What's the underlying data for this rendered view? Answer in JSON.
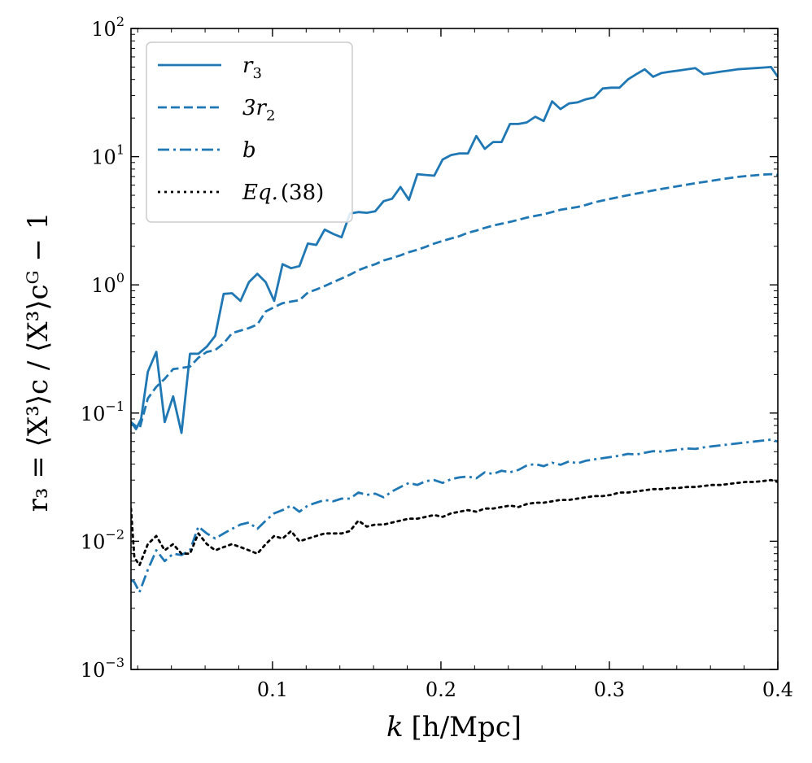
{
  "chart_data": {
    "type": "line",
    "title": "",
    "xlabel_var": "k",
    "xlabel_units": "[h/Mpc]",
    "ylabel": "r₃ = ⟨X³⟩c / ⟨X³⟩cᴳ − 1",
    "yscale": "log",
    "xlim": [
      0.016,
      0.4
    ],
    "ylim": [
      0.001,
      100
    ],
    "xticks": [
      0.1,
      0.2,
      0.3,
      0.4
    ],
    "xtick_labels": [
      "0.1",
      "0.2",
      "0.3",
      "0.4"
    ],
    "yticks": [
      0.001,
      0.01,
      0.1,
      1,
      10,
      100
    ],
    "ytick_bases": [
      "10",
      "10",
      "10",
      "10",
      "10",
      "10"
    ],
    "ytick_exps": [
      "−3",
      "−2",
      "−1",
      "0",
      "1",
      "2"
    ],
    "legend_position": "upper-left",
    "color": "#1f77b4",
    "series": [
      {
        "name": "r3",
        "label_main": "r",
        "label_sub": "3",
        "style": "solid",
        "color": "#1f77b4",
        "x": [
          0.016,
          0.019,
          0.022,
          0.026,
          0.031,
          0.036,
          0.041,
          0.046,
          0.051,
          0.056,
          0.061,
          0.066,
          0.071,
          0.076,
          0.081,
          0.086,
          0.091,
          0.096,
          0.101,
          0.106,
          0.111,
          0.116,
          0.121,
          0.126,
          0.131,
          0.136,
          0.141,
          0.146,
          0.151,
          0.156,
          0.161,
          0.166,
          0.171,
          0.176,
          0.181,
          0.186,
          0.191,
          0.196,
          0.201,
          0.206,
          0.211,
          0.216,
          0.221,
          0.226,
          0.231,
          0.236,
          0.241,
          0.246,
          0.251,
          0.256,
          0.261,
          0.266,
          0.271,
          0.276,
          0.281,
          0.286,
          0.291,
          0.296,
          0.301,
          0.306,
          0.311,
          0.316,
          0.321,
          0.326,
          0.331,
          0.336,
          0.341,
          0.346,
          0.351,
          0.356,
          0.361,
          0.366,
          0.371,
          0.376,
          0.381,
          0.386,
          0.391,
          0.396,
          0.4
        ],
        "y": [
          0.085,
          0.075,
          0.09,
          0.21,
          0.3,
          0.085,
          0.135,
          0.07,
          0.29,
          0.29,
          0.33,
          0.4,
          0.85,
          0.86,
          0.75,
          1.05,
          1.22,
          1.05,
          0.75,
          1.45,
          1.35,
          1.4,
          2.1,
          2.05,
          2.7,
          2.5,
          2.35,
          3.6,
          3.7,
          3.65,
          3.75,
          4.5,
          4.7,
          5.8,
          4.6,
          7.3,
          7.2,
          7.1,
          9.5,
          10.3,
          10.6,
          10.6,
          14.5,
          11.5,
          13.0,
          13.0,
          18.0,
          18.0,
          18.5,
          20.5,
          19.0,
          27.0,
          23.5,
          26.0,
          26.5,
          28.0,
          29.0,
          34.0,
          34.5,
          34.5,
          40.0,
          44.0,
          48.0,
          42.0,
          45.0,
          46.0,
          47.0,
          48.0,
          49.0,
          44.0,
          45.0,
          46.0,
          47.0,
          48.0,
          48.5,
          49.0,
          49.5,
          50.0,
          42.0
        ]
      },
      {
        "name": "3r2",
        "label_main": "3r",
        "label_sub": "2",
        "style": "dashed",
        "color": "#1f77b4",
        "x": [
          0.016,
          0.021,
          0.026,
          0.031,
          0.036,
          0.041,
          0.046,
          0.051,
          0.056,
          0.061,
          0.066,
          0.071,
          0.076,
          0.081,
          0.086,
          0.091,
          0.096,
          0.101,
          0.106,
          0.111,
          0.116,
          0.121,
          0.126,
          0.131,
          0.136,
          0.141,
          0.146,
          0.151,
          0.156,
          0.161,
          0.166,
          0.171,
          0.176,
          0.181,
          0.186,
          0.191,
          0.196,
          0.201,
          0.206,
          0.211,
          0.216,
          0.221,
          0.226,
          0.231,
          0.236,
          0.241,
          0.246,
          0.251,
          0.256,
          0.261,
          0.266,
          0.271,
          0.276,
          0.281,
          0.286,
          0.291,
          0.296,
          0.301,
          0.306,
          0.311,
          0.316,
          0.321,
          0.326,
          0.331,
          0.336,
          0.341,
          0.346,
          0.351,
          0.356,
          0.361,
          0.366,
          0.371,
          0.376,
          0.381,
          0.386,
          0.391,
          0.396,
          0.4
        ],
        "y": [
          0.085,
          0.075,
          0.13,
          0.16,
          0.185,
          0.22,
          0.225,
          0.23,
          0.27,
          0.3,
          0.31,
          0.35,
          0.42,
          0.44,
          0.46,
          0.49,
          0.62,
          0.67,
          0.72,
          0.74,
          0.76,
          0.87,
          0.92,
          0.98,
          1.05,
          1.12,
          1.2,
          1.3,
          1.38,
          1.45,
          1.55,
          1.62,
          1.7,
          1.8,
          1.88,
          1.98,
          2.1,
          2.2,
          2.3,
          2.4,
          2.55,
          2.65,
          2.78,
          2.9,
          3.0,
          3.1,
          3.22,
          3.35,
          3.45,
          3.55,
          3.7,
          3.85,
          3.95,
          4.05,
          4.2,
          4.4,
          4.55,
          4.7,
          4.85,
          5.0,
          5.15,
          5.3,
          5.45,
          5.6,
          5.75,
          5.9,
          6.05,
          6.2,
          6.35,
          6.5,
          6.65,
          6.8,
          6.95,
          7.05,
          7.15,
          7.25,
          7.3,
          7.2
        ]
      },
      {
        "name": "b",
        "label_main": "b",
        "label_sub": "",
        "style": "dashdot",
        "color": "#1f77b4",
        "x": [
          0.016,
          0.018,
          0.021,
          0.026,
          0.031,
          0.036,
          0.041,
          0.046,
          0.051,
          0.056,
          0.061,
          0.066,
          0.071,
          0.076,
          0.081,
          0.086,
          0.091,
          0.096,
          0.101,
          0.106,
          0.111,
          0.116,
          0.121,
          0.126,
          0.131,
          0.136,
          0.141,
          0.146,
          0.151,
          0.156,
          0.161,
          0.166,
          0.171,
          0.176,
          0.181,
          0.186,
          0.191,
          0.196,
          0.201,
          0.206,
          0.211,
          0.216,
          0.221,
          0.226,
          0.231,
          0.236,
          0.241,
          0.246,
          0.251,
          0.256,
          0.261,
          0.266,
          0.271,
          0.276,
          0.281,
          0.286,
          0.291,
          0.296,
          0.301,
          0.306,
          0.311,
          0.316,
          0.321,
          0.326,
          0.331,
          0.336,
          0.341,
          0.346,
          0.351,
          0.356,
          0.361,
          0.366,
          0.371,
          0.376,
          0.381,
          0.386,
          0.391,
          0.396,
          0.4
        ],
        "y": [
          0.005,
          0.0048,
          0.004,
          0.006,
          0.0085,
          0.007,
          0.008,
          0.0078,
          0.0085,
          0.013,
          0.0115,
          0.0105,
          0.0115,
          0.0125,
          0.0135,
          0.014,
          0.0125,
          0.0145,
          0.0165,
          0.0175,
          0.019,
          0.017,
          0.019,
          0.02,
          0.021,
          0.0205,
          0.0215,
          0.0215,
          0.024,
          0.023,
          0.0235,
          0.022,
          0.0245,
          0.0265,
          0.0285,
          0.0275,
          0.0295,
          0.03,
          0.0285,
          0.0305,
          0.0315,
          0.032,
          0.031,
          0.0345,
          0.0335,
          0.0355,
          0.0345,
          0.036,
          0.039,
          0.04,
          0.0385,
          0.041,
          0.0395,
          0.042,
          0.0405,
          0.0425,
          0.0435,
          0.0445,
          0.0455,
          0.0465,
          0.048,
          0.0475,
          0.049,
          0.0505,
          0.05,
          0.051,
          0.052,
          0.053,
          0.0525,
          0.054,
          0.055,
          0.056,
          0.057,
          0.058,
          0.059,
          0.06,
          0.061,
          0.062,
          0.06
        ]
      },
      {
        "name": "Eq.(38)",
        "label_main": "Eq.",
        "label_sub": "(38)",
        "style": "dotted",
        "color": "#000000",
        "x": [
          0.016,
          0.018,
          0.021,
          0.026,
          0.031,
          0.036,
          0.041,
          0.046,
          0.051,
          0.056,
          0.061,
          0.066,
          0.071,
          0.076,
          0.081,
          0.086,
          0.091,
          0.096,
          0.101,
          0.106,
          0.111,
          0.116,
          0.121,
          0.126,
          0.131,
          0.136,
          0.141,
          0.146,
          0.151,
          0.156,
          0.161,
          0.166,
          0.171,
          0.176,
          0.181,
          0.186,
          0.191,
          0.196,
          0.201,
          0.206,
          0.211,
          0.216,
          0.221,
          0.226,
          0.231,
          0.236,
          0.241,
          0.246,
          0.251,
          0.256,
          0.261,
          0.266,
          0.271,
          0.276,
          0.281,
          0.286,
          0.291,
          0.296,
          0.301,
          0.306,
          0.311,
          0.316,
          0.321,
          0.326,
          0.331,
          0.336,
          0.341,
          0.346,
          0.351,
          0.356,
          0.361,
          0.366,
          0.371,
          0.376,
          0.381,
          0.386,
          0.391,
          0.396,
          0.4
        ],
        "y": [
          0.018,
          0.0075,
          0.0065,
          0.0095,
          0.011,
          0.0085,
          0.0095,
          0.008,
          0.008,
          0.0115,
          0.0095,
          0.0085,
          0.009,
          0.0095,
          0.009,
          0.0085,
          0.008,
          0.0095,
          0.011,
          0.0105,
          0.012,
          0.01,
          0.0105,
          0.011,
          0.0115,
          0.0115,
          0.0115,
          0.012,
          0.0145,
          0.013,
          0.0135,
          0.0135,
          0.014,
          0.0145,
          0.015,
          0.015,
          0.0155,
          0.016,
          0.0155,
          0.0165,
          0.017,
          0.0175,
          0.017,
          0.018,
          0.018,
          0.0185,
          0.019,
          0.0185,
          0.0195,
          0.02,
          0.02,
          0.0205,
          0.021,
          0.021,
          0.0215,
          0.022,
          0.0225,
          0.0225,
          0.023,
          0.024,
          0.024,
          0.0245,
          0.025,
          0.0255,
          0.0255,
          0.026,
          0.026,
          0.0265,
          0.0265,
          0.027,
          0.0275,
          0.0275,
          0.028,
          0.0285,
          0.029,
          0.029,
          0.0295,
          0.03,
          0.029
        ]
      }
    ]
  }
}
